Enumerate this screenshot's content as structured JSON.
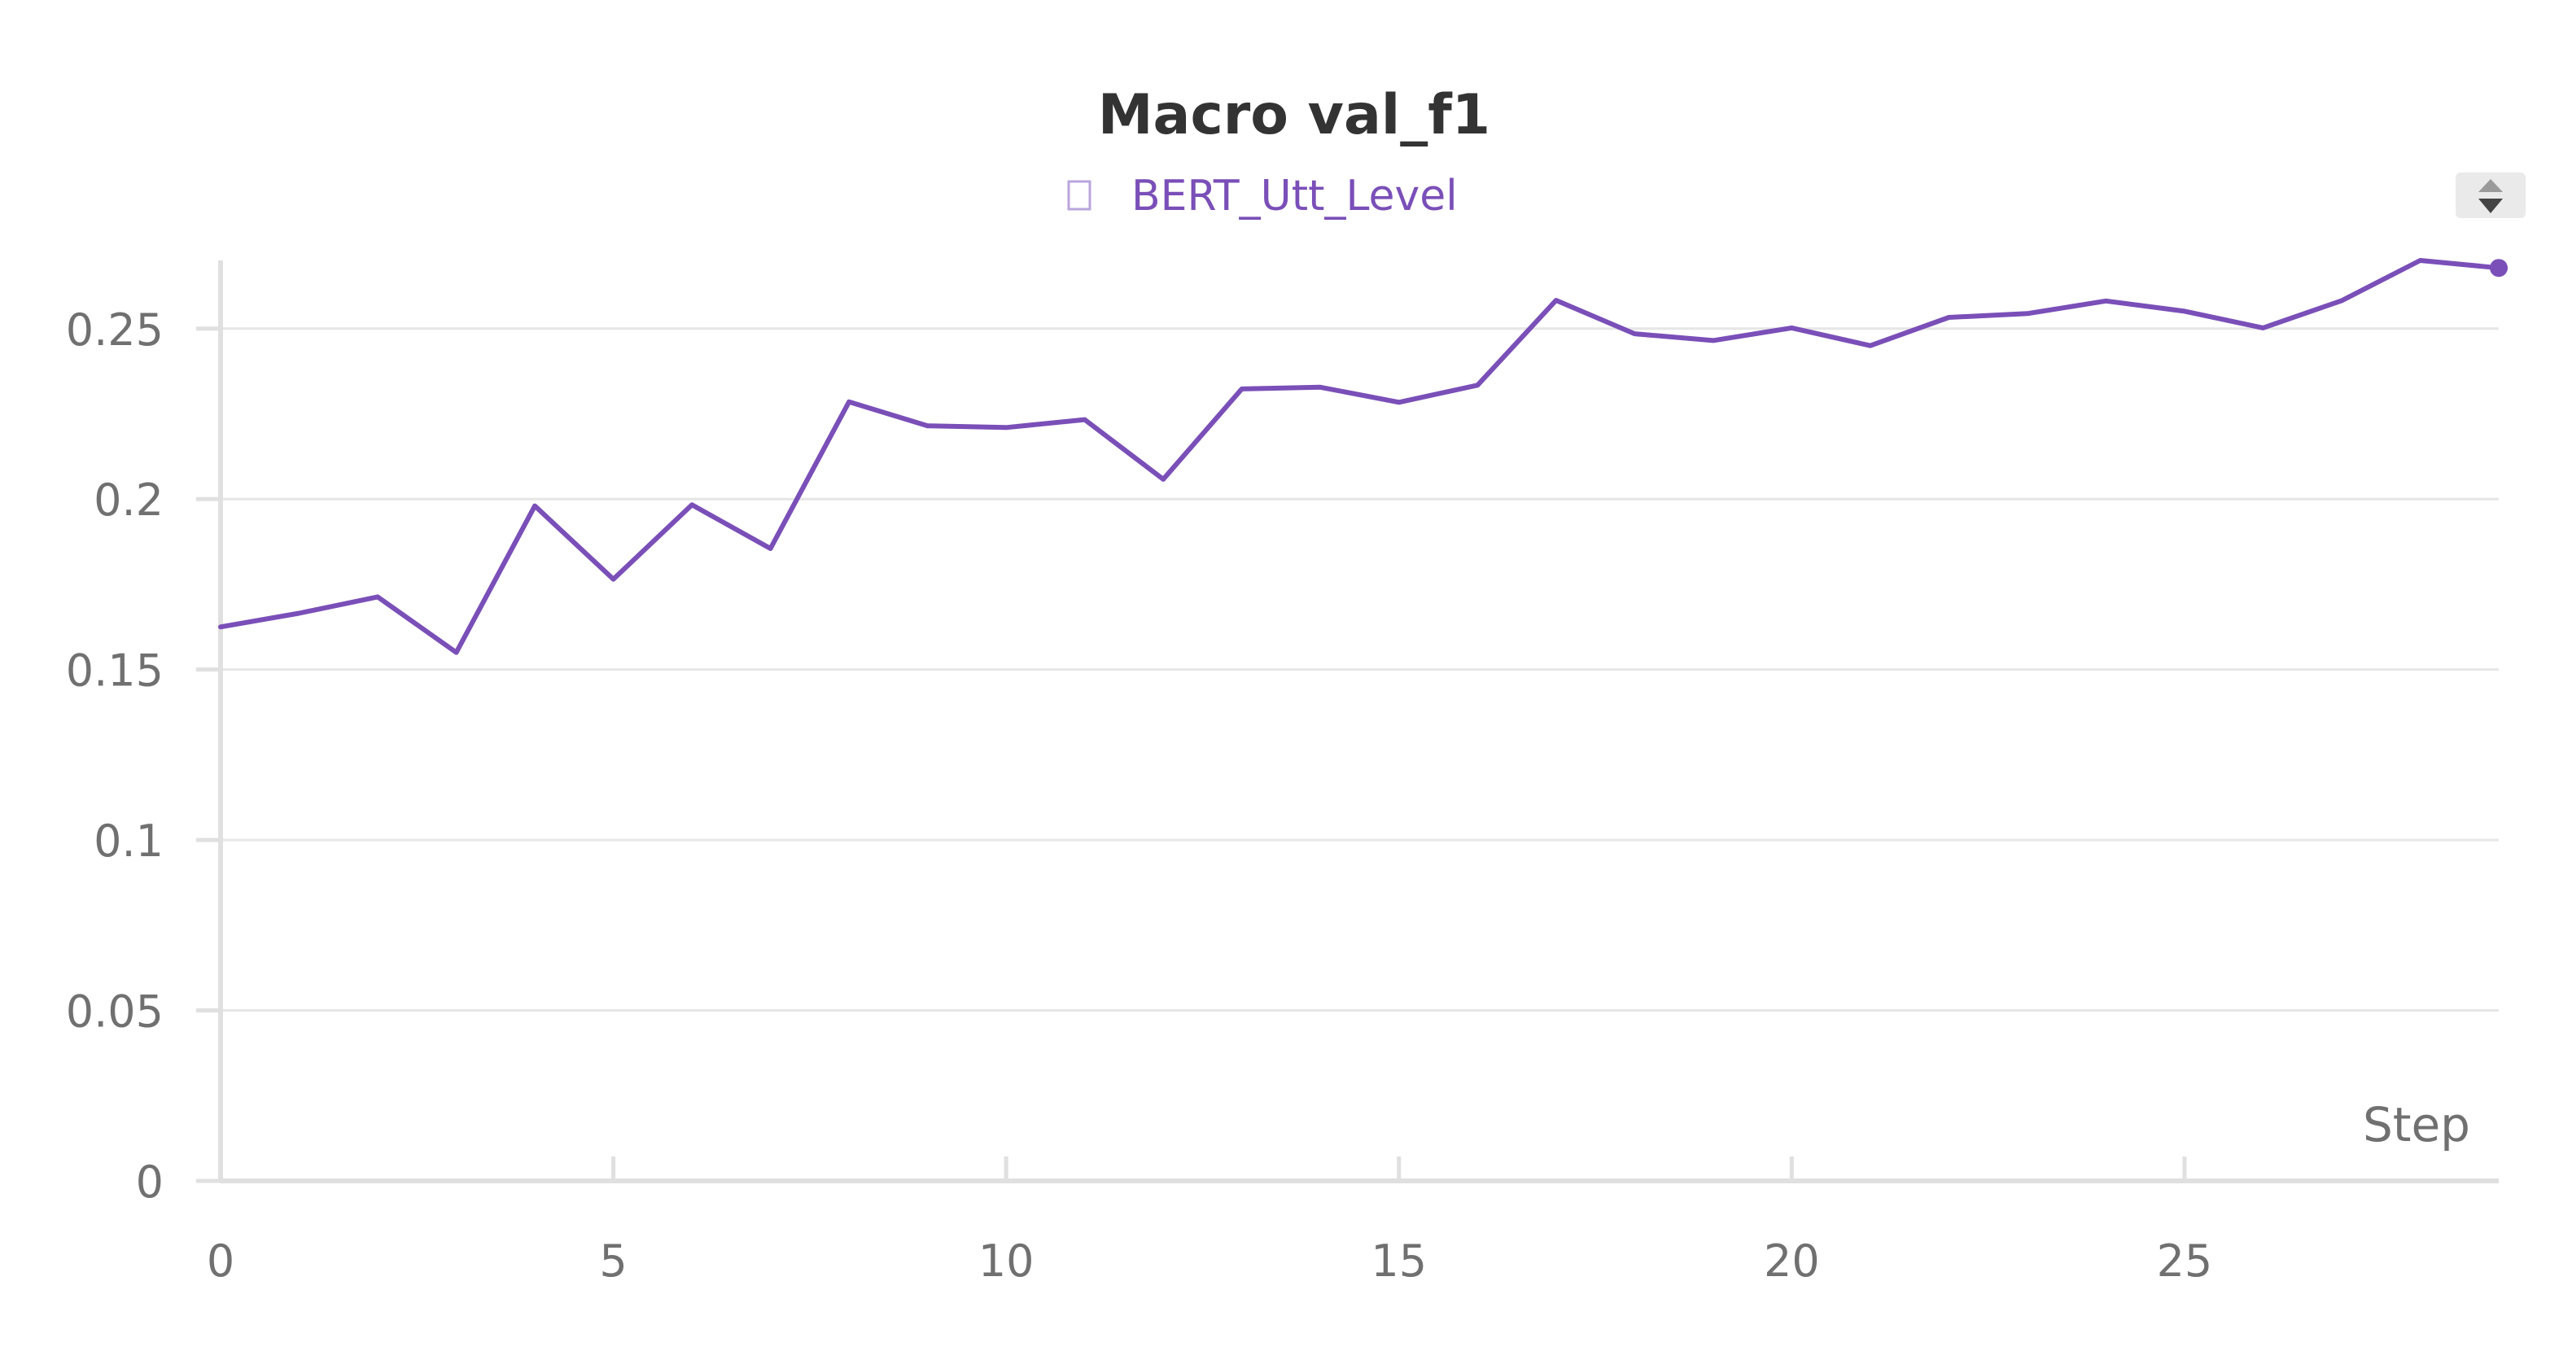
{
  "chart_data": {
    "type": "line",
    "title": "Macro val_f1",
    "xlabel": "Step",
    "ylabel": "",
    "xlim": [
      0,
      29
    ],
    "ylim": [
      0,
      0.27
    ],
    "x_ticks": [
      "0",
      "5",
      "10",
      "15",
      "20",
      "25"
    ],
    "y_ticks": [
      "0",
      "0.05",
      "0.1",
      "0.15",
      "0.2",
      "0.25"
    ],
    "grid": true,
    "legend_position": "top-center",
    "series": [
      {
        "name": "BERT_Utt_Level",
        "color": "#7a4fb8",
        "x": [
          0,
          1,
          2,
          3,
          4,
          5,
          6,
          7,
          8,
          9,
          10,
          11,
          12,
          13,
          14,
          15,
          16,
          17,
          18,
          19,
          20,
          21,
          22,
          23,
          24,
          25,
          26,
          27,
          28,
          29
        ],
        "values": [
          0.1625,
          0.1665,
          0.1713,
          0.155,
          0.198,
          0.1765,
          0.1983,
          0.1855,
          0.2285,
          0.2215,
          0.221,
          0.2233,
          0.2058,
          0.2323,
          0.2328,
          0.2284,
          0.2334,
          0.2583,
          0.2485,
          0.2465,
          0.2502,
          0.245,
          0.2533,
          0.2544,
          0.2581,
          0.2551,
          0.2502,
          0.2582,
          0.27,
          0.2678
        ]
      }
    ]
  }
}
